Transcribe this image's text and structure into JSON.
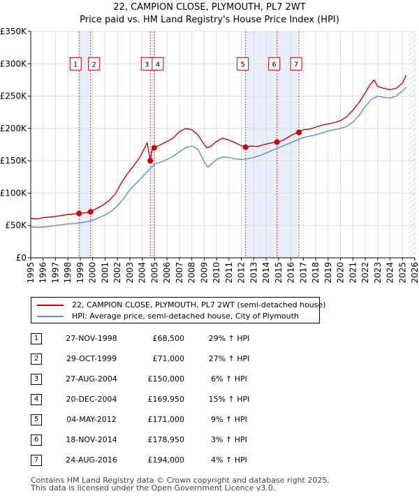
{
  "chart_data": {
    "type": "line",
    "title": "22, CAMPION CLOSE, PLYMOUTH, PL7 2WT",
    "subtitle": "Price paid vs. HM Land Registry's House Price Index (HPI)",
    "xlim": [
      1995,
      2026
    ],
    "ylim": [
      0,
      350000
    ],
    "y_ticks": [
      0,
      50000,
      100000,
      150000,
      200000,
      250000,
      300000,
      350000
    ],
    "y_tick_labels": [
      "£0",
      "£50K",
      "£100K",
      "£150K",
      "£200K",
      "£250K",
      "£300K",
      "£350K"
    ],
    "x_ticks": [
      1995,
      1996,
      1997,
      1998,
      1999,
      2000,
      2001,
      2002,
      2003,
      2004,
      2005,
      2006,
      2007,
      2008,
      2009,
      2010,
      2011,
      2012,
      2013,
      2014,
      2015,
      2016,
      2017,
      2018,
      2019,
      2020,
      2021,
      2022,
      2023,
      2024,
      2025,
      2026
    ],
    "x_tick_labels": [
      "1995",
      "1996",
      "1997",
      "1998",
      "1999",
      "2000",
      "2001",
      "2002",
      "2003",
      "2004",
      "2005",
      "2006",
      "2007",
      "2008",
      "2009",
      "2010",
      "2011",
      "2012",
      "2013",
      "2014",
      "2015",
      "2016",
      "2017",
      "2018",
      "2019",
      "2020",
      "2021",
      "2022",
      "2023",
      "2024",
      "2025",
      "2026"
    ],
    "grid": true,
    "shaded_ranges": [
      [
        1998.9,
        1999.83
      ],
      [
        2004.65,
        2004.97
      ],
      [
        2012.34,
        2016.65
      ]
    ],
    "future_hatch_from": 2025.5,
    "series": [
      {
        "name": "22, CAMPION CLOSE, PLYMOUTH, PL7 2WT (semi-detached house)",
        "color": "#cc0000",
        "x": [
          1995.0,
          1995.5,
          1996.0,
          1996.5,
          1997.0,
          1997.5,
          1998.0,
          1998.5,
          1998.9,
          1999.3,
          1999.83,
          2000.3,
          2000.8,
          2001.3,
          2001.8,
          2002.3,
          2002.8,
          2003.3,
          2003.8,
          2004.2,
          2004.4,
          2004.65,
          2004.8,
          2004.97,
          2005.5,
          2006.0,
          2006.5,
          2007.0,
          2007.5,
          2008.0,
          2008.5,
          2008.9,
          2009.2,
          2009.5,
          2010.0,
          2010.5,
          2011.0,
          2011.5,
          2011.9,
          2012.34,
          2012.8,
          2013.3,
          2013.8,
          2014.3,
          2014.88,
          2015.4,
          2015.9,
          2016.3,
          2016.65,
          2017.0,
          2017.5,
          2018.0,
          2018.5,
          2019.0,
          2019.5,
          2020.0,
          2020.5,
          2021.0,
          2021.5,
          2022.0,
          2022.4,
          2022.7,
          2023.0,
          2023.5,
          2024.0,
          2024.5,
          2025.0,
          2025.3
        ],
        "values": [
          61000,
          60000,
          62000,
          63000,
          64000,
          65500,
          67000,
          67800,
          68500,
          69500,
          71000,
          76000,
          81000,
          88000,
          98000,
          115000,
          130000,
          142000,
          155000,
          170000,
          178000,
          150000,
          168000,
          169950,
          175000,
          180000,
          185000,
          195000,
          200000,
          198000,
          190000,
          178000,
          170000,
          172000,
          180000,
          185000,
          182000,
          178000,
          174000,
          171000,
          173000,
          172000,
          175000,
          177000,
          178950,
          182000,
          188000,
          192000,
          194000,
          198000,
          199000,
          202000,
          205000,
          207000,
          209000,
          212000,
          218000,
          228000,
          240000,
          255000,
          268000,
          275000,
          265000,
          262000,
          260000,
          262000,
          270000,
          282000
        ]
      },
      {
        "name": "HPI: Average price, semi-detached house, City of Plymouth",
        "color": "#5b8fd0",
        "x": [
          1995.0,
          1995.5,
          1996.0,
          1996.5,
          1997.0,
          1997.5,
          1998.0,
          1998.5,
          1999.0,
          1999.5,
          2000.0,
          2000.5,
          2001.0,
          2001.5,
          2002.0,
          2002.5,
          2003.0,
          2003.5,
          2004.0,
          2004.5,
          2005.0,
          2005.5,
          2006.0,
          2006.5,
          2007.0,
          2007.5,
          2008.0,
          2008.5,
          2009.0,
          2009.3,
          2009.6,
          2010.0,
          2010.5,
          2011.0,
          2011.5,
          2012.0,
          2012.5,
          2013.0,
          2013.5,
          2014.0,
          2014.5,
          2015.0,
          2015.5,
          2016.0,
          2016.5,
          2017.0,
          2017.5,
          2018.0,
          2018.5,
          2019.0,
          2019.5,
          2020.0,
          2020.5,
          2021.0,
          2021.5,
          2022.0,
          2022.5,
          2023.0,
          2023.5,
          2024.0,
          2024.5,
          2025.0,
          2025.3
        ],
        "values": [
          48000,
          47000,
          47500,
          48500,
          50000,
          51000,
          52500,
          53000,
          54000,
          55500,
          58000,
          62000,
          66000,
          72000,
          80000,
          92000,
          105000,
          115000,
          125000,
          135000,
          145000,
          148000,
          152000,
          157000,
          164000,
          170000,
          173000,
          168000,
          148000,
          140000,
          145000,
          152000,
          156000,
          155000,
          153000,
          152000,
          153000,
          155000,
          158000,
          162000,
          166000,
          170000,
          174000,
          178000,
          182000,
          186000,
          188000,
          190000,
          193000,
          196000,
          198000,
          200000,
          203000,
          210000,
          220000,
          234000,
          245000,
          250000,
          248000,
          247000,
          250000,
          258000,
          264000
        ]
      }
    ],
    "sales": [
      {
        "n": "1",
        "x": 1998.9,
        "value": 68500
      },
      {
        "n": "2",
        "x": 1999.83,
        "value": 71000
      },
      {
        "n": "3",
        "x": 2004.65,
        "value": 150000
      },
      {
        "n": "4",
        "x": 2004.97,
        "value": 169950
      },
      {
        "n": "5",
        "x": 2012.34,
        "value": 171000
      },
      {
        "n": "6",
        "x": 2014.88,
        "value": 178950
      },
      {
        "n": "7",
        "x": 2016.65,
        "value": 194000
      }
    ],
    "label_value": 300000
  },
  "legend": {
    "property": "22, CAMPION CLOSE, PLYMOUTH, PL7 2WT (semi-detached house)",
    "hpi": "HPI: Average price, semi-detached house, City of Plymouth"
  },
  "transactions": [
    {
      "n": "1",
      "date": "27-NOV-1998",
      "price": "£68,500",
      "hpi": "29% ↑ HPI"
    },
    {
      "n": "2",
      "date": "29-OCT-1999",
      "price": "£71,000",
      "hpi": "27% ↑ HPI"
    },
    {
      "n": "3",
      "date": "27-AUG-2004",
      "price": "£150,000",
      "hpi": "6% ↑ HPI"
    },
    {
      "n": "4",
      "date": "20-DEC-2004",
      "price": "£169,950",
      "hpi": "15% ↑ HPI"
    },
    {
      "n": "5",
      "date": "04-MAY-2012",
      "price": "£171,000",
      "hpi": "9% ↑ HPI"
    },
    {
      "n": "6",
      "date": "18-NOV-2014",
      "price": "£178,950",
      "hpi": "3% ↑ HPI"
    },
    {
      "n": "7",
      "date": "24-AUG-2016",
      "price": "£194,000",
      "hpi": "4% ↑ HPI"
    }
  ],
  "footer": {
    "line1": "Contains HM Land Registry data © Crown copyright and database right 2025.",
    "line2": "This data is licensed under the Open Government Licence v3.0."
  },
  "colors": {
    "property": "#cc0000",
    "hpi": "#5b8fd0",
    "shade": "#e8eefa",
    "grid": "#dddddd"
  }
}
